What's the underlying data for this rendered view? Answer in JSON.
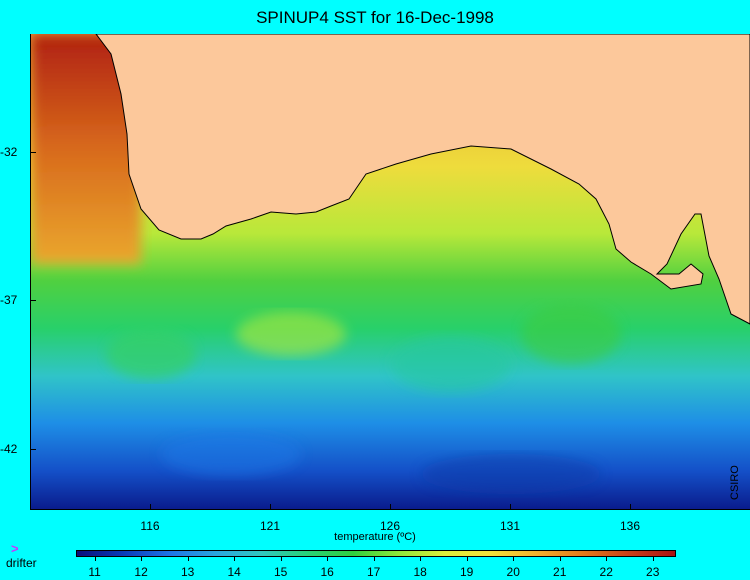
{
  "title": "SPINUP4 SST for 16-Dec-1998",
  "x_axis": {
    "label": "temperature (ºC)",
    "ticks": [
      "116",
      "121",
      "126",
      "131",
      "136"
    ],
    "tick_values": [
      116,
      121,
      126,
      131,
      136
    ],
    "range": [
      111,
      141
    ]
  },
  "y_axis": {
    "ticks": [
      "-32",
      "-37",
      "-42"
    ],
    "tick_values": [
      -32,
      -37,
      -42
    ],
    "range": [
      -28,
      -44
    ]
  },
  "legend": {
    "drifter_label": "drifter",
    "drifter_symbol": ">"
  },
  "credit": "CSIRO",
  "colorbar": {
    "labels": [
      "11",
      "12",
      "13",
      "14",
      "15",
      "16",
      "17",
      "18",
      "19",
      "20",
      "21",
      "22",
      "23"
    ],
    "values": [
      11,
      12,
      13,
      14,
      15,
      16,
      17,
      18,
      19,
      20,
      21,
      22,
      23
    ],
    "min": 10.6,
    "max": 23.5,
    "colors": [
      "#0a0f7a",
      "#0a3bb8",
      "#1e73e6",
      "#2aa6e0",
      "#30c8c0",
      "#28d27a",
      "#30d040",
      "#8ee83a",
      "#dcf03a",
      "#f4e23a",
      "#f4b02e",
      "#e47a1c",
      "#c8401a",
      "#a81212"
    ]
  },
  "colors": {
    "background": "#00ffff",
    "land": "#fcc89b"
  }
}
